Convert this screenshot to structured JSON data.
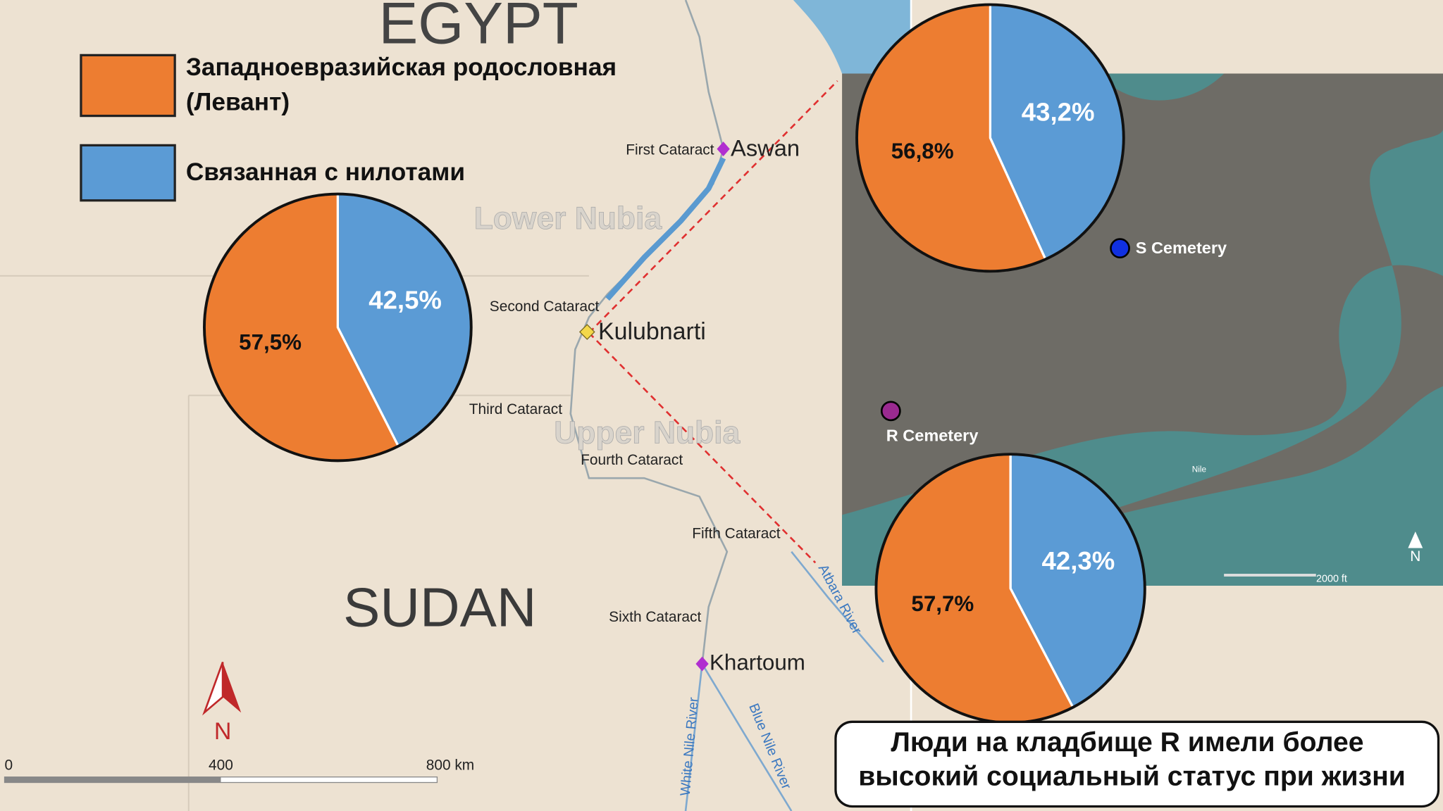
{
  "legend": [
    {
      "label": "Западноевразийская родословная (Левант)",
      "color": "#ed7d31"
    },
    {
      "label": "Связанная с нилотами",
      "color": "#5b9bd5"
    }
  ],
  "chart_data": [
    {
      "type": "pie",
      "values": [
        57.5,
        42.5
      ],
      "value_labels": [
        "57,5%",
        "42,5%"
      ]
    },
    {
      "type": "pie",
      "values": [
        56.8,
        43.2
      ],
      "value_labels": [
        "56,8%",
        "43,2%"
      ]
    },
    {
      "type": "pie",
      "values": [
        57.7,
        42.3
      ],
      "value_labels": [
        "57,7%",
        "42,3%"
      ]
    }
  ],
  "map": {
    "labels": [
      "EGYPT",
      "SUDAN",
      "Lower Nubia",
      "Upper Nubia",
      "First Cataract",
      "Aswan",
      "Second Cataract",
      "Kulubnarti",
      "Third Cataract",
      "Fourth Cataract",
      "Fifth Cataract",
      "Sixth Cataract",
      "Khartoum",
      "Atbara River",
      "White Nile River",
      "Blue Nile River",
      "N"
    ],
    "scale": [
      "0",
      "400",
      "800 km"
    ]
  },
  "satellite": {
    "labels": [
      "S Cemetery",
      "R Cemetery",
      "Nile",
      "N",
      "2000 ft"
    ]
  },
  "note": [
    "Люди на кладбище R имели более",
    "высокий социальный статус при жизни"
  ]
}
